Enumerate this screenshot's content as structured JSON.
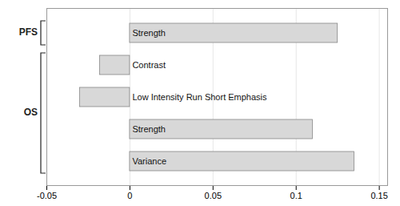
{
  "chart_data": {
    "type": "bar",
    "orientation": "horizontal",
    "categories": [
      "Strength",
      "Contrast",
      "Low Intensity Run Short Emphasis",
      "Strength",
      "Variance"
    ],
    "values": [
      0.125,
      -0.018,
      -0.03,
      0.11,
      0.135
    ],
    "groups": [
      "PFS",
      "OS",
      "OS",
      "OS",
      "OS"
    ],
    "color": "#d8d8d8",
    "xlim": [
      -0.05,
      0.155
    ],
    "xticks": [
      -0.05,
      0,
      0.05,
      0.1,
      0.15
    ],
    "grid": true,
    "tick_labels": "x"
  }
}
